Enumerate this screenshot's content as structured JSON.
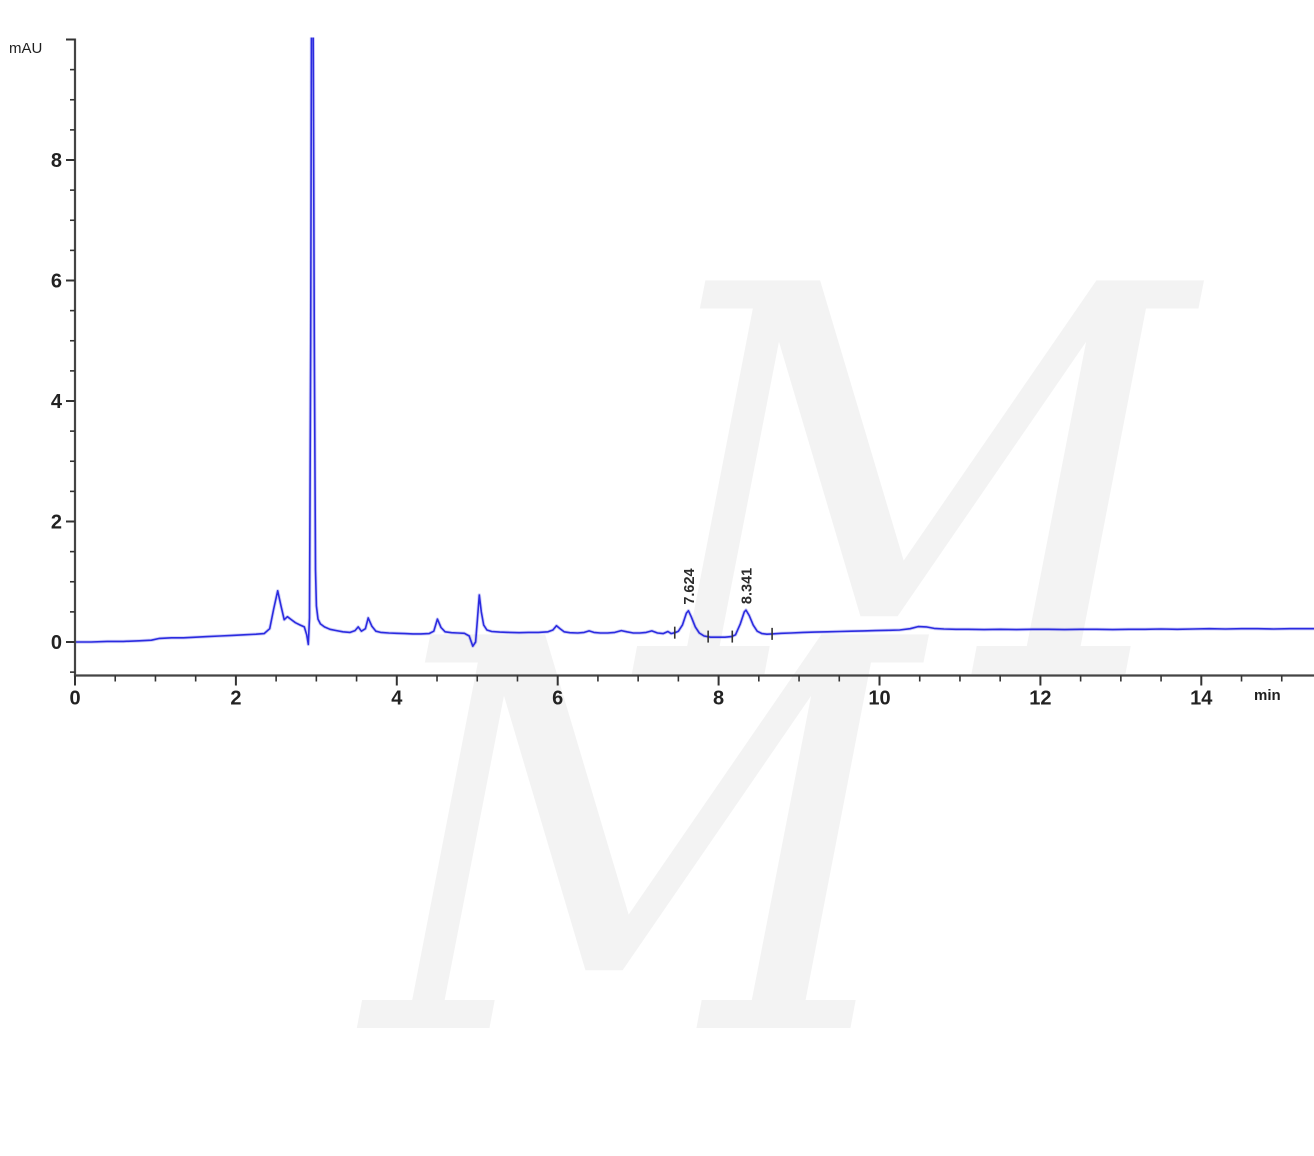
{
  "watermark": {
    "text": "M"
  },
  "labels": {
    "y_unit": "mAU",
    "x_unit": "min"
  },
  "chart_data": {
    "type": "line",
    "title": "",
    "xlabel": "min",
    "ylabel": "mAU",
    "grid": false,
    "legend": "none",
    "trace_color": "#2b2be0",
    "axis_color": "#444444",
    "tick_color": "#333333",
    "label_color": "#222222",
    "x_axis": {
      "min": 0,
      "max": 15.4,
      "major_step": 2,
      "minor_step": 0.5,
      "labeled_majors": [
        0,
        2,
        4,
        6,
        8,
        10,
        12,
        14
      ]
    },
    "y_axis": {
      "min": -0.55,
      "max": 10.0,
      "major_step": 2,
      "minor_step": 0.5,
      "labeled_majors": [
        0,
        2,
        4,
        6,
        8
      ]
    },
    "peaks": [
      {
        "time": 7.624,
        "value": 0.52,
        "label": "7.624"
      },
      {
        "time": 8.341,
        "value": 0.53,
        "label": "8.341"
      }
    ],
    "integration_marks": [
      {
        "t": 7.455,
        "v": 0.155
      },
      {
        "t": 7.87,
        "v": 0.09
      },
      {
        "t": 8.17,
        "v": 0.09
      },
      {
        "t": 8.665,
        "v": 0.135
      }
    ],
    "offscale_peak": {
      "time": 2.96,
      "clipped_at": 10.0
    },
    "trace": [
      [
        0.0,
        0.0
      ],
      [
        0.2,
        0.0
      ],
      [
        0.4,
        0.01
      ],
      [
        0.6,
        0.01
      ],
      [
        0.8,
        0.02
      ],
      [
        0.95,
        0.03
      ],
      [
        1.05,
        0.06
      ],
      [
        1.2,
        0.07
      ],
      [
        1.35,
        0.07
      ],
      [
        1.5,
        0.08
      ],
      [
        1.65,
        0.09
      ],
      [
        1.8,
        0.1
      ],
      [
        1.95,
        0.11
      ],
      [
        2.1,
        0.12
      ],
      [
        2.25,
        0.13
      ],
      [
        2.35,
        0.14
      ],
      [
        2.42,
        0.22
      ],
      [
        2.47,
        0.55
      ],
      [
        2.52,
        0.85
      ],
      [
        2.56,
        0.6
      ],
      [
        2.6,
        0.37
      ],
      [
        2.64,
        0.42
      ],
      [
        2.68,
        0.38
      ],
      [
        2.74,
        0.32
      ],
      [
        2.8,
        0.28
      ],
      [
        2.85,
        0.25
      ],
      [
        2.88,
        0.12
      ],
      [
        2.9,
        -0.04
      ],
      [
        2.915,
        0.4
      ],
      [
        2.93,
        5.0
      ],
      [
        2.94,
        10.6
      ],
      [
        2.96,
        10.6
      ],
      [
        2.975,
        5.0
      ],
      [
        2.99,
        1.2
      ],
      [
        3.0,
        0.6
      ],
      [
        3.02,
        0.38
      ],
      [
        3.05,
        0.3
      ],
      [
        3.1,
        0.25
      ],
      [
        3.17,
        0.21
      ],
      [
        3.25,
        0.19
      ],
      [
        3.33,
        0.17
      ],
      [
        3.42,
        0.16
      ],
      [
        3.48,
        0.19
      ],
      [
        3.52,
        0.25
      ],
      [
        3.56,
        0.18
      ],
      [
        3.61,
        0.22
      ],
      [
        3.645,
        0.4
      ],
      [
        3.69,
        0.26
      ],
      [
        3.74,
        0.18
      ],
      [
        3.8,
        0.16
      ],
      [
        3.9,
        0.15
      ],
      [
        4.0,
        0.145
      ],
      [
        4.1,
        0.14
      ],
      [
        4.2,
        0.135
      ],
      [
        4.3,
        0.135
      ],
      [
        4.4,
        0.14
      ],
      [
        4.46,
        0.18
      ],
      [
        4.505,
        0.38
      ],
      [
        4.55,
        0.24
      ],
      [
        4.6,
        0.17
      ],
      [
        4.68,
        0.155
      ],
      [
        4.76,
        0.15
      ],
      [
        4.84,
        0.145
      ],
      [
        4.9,
        0.1
      ],
      [
        4.945,
        -0.07
      ],
      [
        4.98,
        0.0
      ],
      [
        5.0,
        0.35
      ],
      [
        5.025,
        0.78
      ],
      [
        5.05,
        0.5
      ],
      [
        5.08,
        0.28
      ],
      [
        5.12,
        0.2
      ],
      [
        5.18,
        0.175
      ],
      [
        5.28,
        0.165
      ],
      [
        5.4,
        0.16
      ],
      [
        5.52,
        0.155
      ],
      [
        5.64,
        0.16
      ],
      [
        5.76,
        0.16
      ],
      [
        5.88,
        0.17
      ],
      [
        5.94,
        0.2
      ],
      [
        5.985,
        0.27
      ],
      [
        6.03,
        0.22
      ],
      [
        6.08,
        0.17
      ],
      [
        6.15,
        0.155
      ],
      [
        6.25,
        0.15
      ],
      [
        6.33,
        0.16
      ],
      [
        6.39,
        0.185
      ],
      [
        6.45,
        0.16
      ],
      [
        6.53,
        0.15
      ],
      [
        6.62,
        0.15
      ],
      [
        6.71,
        0.16
      ],
      [
        6.79,
        0.19
      ],
      [
        6.86,
        0.17
      ],
      [
        6.94,
        0.15
      ],
      [
        7.02,
        0.15
      ],
      [
        7.1,
        0.16
      ],
      [
        7.17,
        0.185
      ],
      [
        7.24,
        0.15
      ],
      [
        7.31,
        0.14
      ],
      [
        7.37,
        0.175
      ],
      [
        7.41,
        0.14
      ],
      [
        7.455,
        0.155
      ],
      [
        7.5,
        0.18
      ],
      [
        7.55,
        0.28
      ],
      [
        7.6,
        0.48
      ],
      [
        7.624,
        0.52
      ],
      [
        7.66,
        0.42
      ],
      [
        7.71,
        0.25
      ],
      [
        7.76,
        0.15
      ],
      [
        7.82,
        0.1
      ],
      [
        7.9,
        0.08
      ],
      [
        8.0,
        0.08
      ],
      [
        8.08,
        0.08
      ],
      [
        8.16,
        0.09
      ],
      [
        8.21,
        0.12
      ],
      [
        8.27,
        0.3
      ],
      [
        8.32,
        0.5
      ],
      [
        8.341,
        0.53
      ],
      [
        8.38,
        0.44
      ],
      [
        8.43,
        0.28
      ],
      [
        8.48,
        0.18
      ],
      [
        8.54,
        0.14
      ],
      [
        8.6,
        0.13
      ],
      [
        8.665,
        0.135
      ],
      [
        8.78,
        0.145
      ],
      [
        8.9,
        0.15
      ],
      [
        9.05,
        0.16
      ],
      [
        9.2,
        0.165
      ],
      [
        9.35,
        0.17
      ],
      [
        9.5,
        0.175
      ],
      [
        9.65,
        0.18
      ],
      [
        9.8,
        0.185
      ],
      [
        9.95,
        0.19
      ],
      [
        10.1,
        0.195
      ],
      [
        10.25,
        0.2
      ],
      [
        10.38,
        0.22
      ],
      [
        10.48,
        0.255
      ],
      [
        10.58,
        0.25
      ],
      [
        10.68,
        0.225
      ],
      [
        10.8,
        0.215
      ],
      [
        10.95,
        0.21
      ],
      [
        11.1,
        0.21
      ],
      [
        11.3,
        0.205
      ],
      [
        11.5,
        0.21
      ],
      [
        11.7,
        0.205
      ],
      [
        11.9,
        0.21
      ],
      [
        12.1,
        0.21
      ],
      [
        12.3,
        0.205
      ],
      [
        12.5,
        0.21
      ],
      [
        12.7,
        0.21
      ],
      [
        12.9,
        0.205
      ],
      [
        13.1,
        0.21
      ],
      [
        13.3,
        0.21
      ],
      [
        13.5,
        0.215
      ],
      [
        13.7,
        0.21
      ],
      [
        13.9,
        0.215
      ],
      [
        14.1,
        0.22
      ],
      [
        14.3,
        0.215
      ],
      [
        14.5,
        0.22
      ],
      [
        14.7,
        0.22
      ],
      [
        14.9,
        0.215
      ],
      [
        15.1,
        0.22
      ],
      [
        15.4,
        0.22
      ]
    ]
  }
}
